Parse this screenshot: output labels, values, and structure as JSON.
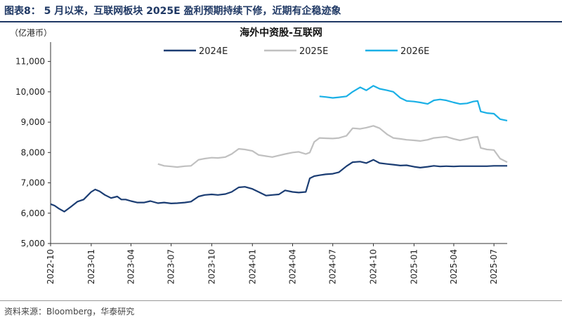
{
  "figure_title": "图表8：  5 月以来，互联网板块 2025E 盈利预期持续下修，近期有企稳迹象",
  "unit_label": "（亿港币）",
  "source_note": "资料来源：Bloomberg，华泰研究",
  "colors": {
    "2024E": "#1b3d73",
    "2025E": "#c0c0c0",
    "2026E": "#1ab0e6",
    "header": "#1f3864"
  },
  "chart_data": {
    "type": "line",
    "title": "海外中资股-互联网",
    "ylabel": "（亿港币）",
    "ylim": [
      5000,
      11500
    ],
    "yticks": [
      5000,
      6000,
      7000,
      8000,
      9000,
      10000,
      11000
    ],
    "ytick_labels": [
      "5,000",
      "6,000",
      "7,000",
      "8,000",
      "9,000",
      "10,000",
      "11,000"
    ],
    "xlim": [
      "2022-10-01",
      "2025-07-31"
    ],
    "xticks": [
      "2022-10",
      "2023-01",
      "2023-04",
      "2023-07",
      "2023-10",
      "2024-01",
      "2024-04",
      "2024-07",
      "2024-10",
      "2025-01",
      "2025-04",
      "2025-07"
    ],
    "legend_position": "top",
    "series": [
      {
        "name": "2024E",
        "key": "2024E",
        "x": [
          "2022-10-01",
          "2022-10-10",
          "2022-10-20",
          "2022-11-01",
          "2022-11-15",
          "2022-12-01",
          "2022-12-15",
          "2023-01-01",
          "2023-01-10",
          "2023-01-20",
          "2023-02-01",
          "2023-02-15",
          "2023-03-01",
          "2023-03-10",
          "2023-03-20",
          "2023-04-01",
          "2023-04-15",
          "2023-05-01",
          "2023-05-15",
          "2023-06-01",
          "2023-06-15",
          "2023-07-01",
          "2023-07-15",
          "2023-08-01",
          "2023-08-15",
          "2023-09-01",
          "2023-09-15",
          "2023-10-01",
          "2023-10-15",
          "2023-11-01",
          "2023-11-15",
          "2023-12-01",
          "2023-12-15",
          "2024-01-01",
          "2024-01-15",
          "2024-02-01",
          "2024-02-15",
          "2024-03-01",
          "2024-03-15",
          "2024-04-01",
          "2024-04-15",
          "2024-05-01",
          "2024-05-10",
          "2024-05-20",
          "2024-06-01",
          "2024-06-15",
          "2024-07-01",
          "2024-07-15",
          "2024-08-01",
          "2024-08-15",
          "2024-09-01",
          "2024-09-15",
          "2024-10-01",
          "2024-10-15",
          "2024-11-01",
          "2024-11-15",
          "2024-12-01",
          "2024-12-15",
          "2025-01-01",
          "2025-01-15",
          "2025-02-01",
          "2025-02-15",
          "2025-03-01",
          "2025-03-15",
          "2025-04-01",
          "2025-04-15",
          "2025-05-01",
          "2025-05-15",
          "2025-06-01",
          "2025-06-15",
          "2025-07-01",
          "2025-07-15",
          "2025-07-31"
        ],
        "values": [
          6300,
          6250,
          6150,
          6050,
          6200,
          6380,
          6450,
          6700,
          6780,
          6720,
          6600,
          6500,
          6550,
          6450,
          6450,
          6400,
          6350,
          6350,
          6400,
          6330,
          6350,
          6320,
          6330,
          6350,
          6380,
          6550,
          6600,
          6620,
          6600,
          6630,
          6700,
          6850,
          6870,
          6800,
          6700,
          6580,
          6600,
          6620,
          6750,
          6700,
          6680,
          6700,
          7150,
          7220,
          7250,
          7280,
          7300,
          7350,
          7550,
          7680,
          7700,
          7650,
          7760,
          7650,
          7620,
          7600,
          7570,
          7580,
          7530,
          7500,
          7530,
          7560,
          7540,
          7550,
          7540,
          7550,
          7550,
          7550,
          7550,
          7550,
          7560,
          7560,
          7560
        ]
      },
      {
        "name": "2025E",
        "key": "2025E",
        "x": [
          "2023-06-01",
          "2023-06-15",
          "2023-07-01",
          "2023-07-15",
          "2023-08-01",
          "2023-08-15",
          "2023-09-01",
          "2023-09-15",
          "2023-10-01",
          "2023-10-15",
          "2023-11-01",
          "2023-11-15",
          "2023-12-01",
          "2023-12-15",
          "2024-01-01",
          "2024-01-15",
          "2024-02-01",
          "2024-02-15",
          "2024-03-01",
          "2024-03-15",
          "2024-04-01",
          "2024-04-15",
          "2024-05-01",
          "2024-05-10",
          "2024-05-20",
          "2024-06-01",
          "2024-06-15",
          "2024-07-01",
          "2024-07-15",
          "2024-08-01",
          "2024-08-15",
          "2024-09-01",
          "2024-09-15",
          "2024-10-01",
          "2024-10-15",
          "2024-11-01",
          "2024-11-15",
          "2024-12-01",
          "2024-12-15",
          "2025-01-01",
          "2025-01-15",
          "2025-02-01",
          "2025-02-15",
          "2025-03-01",
          "2025-03-15",
          "2025-04-01",
          "2025-04-15",
          "2025-05-01",
          "2025-05-15",
          "2025-05-25",
          "2025-06-01",
          "2025-06-15",
          "2025-07-01",
          "2025-07-15",
          "2025-07-31"
        ],
        "values": [
          7620,
          7560,
          7540,
          7520,
          7550,
          7560,
          7760,
          7800,
          7830,
          7820,
          7850,
          7950,
          8120,
          8100,
          8050,
          7920,
          7880,
          7850,
          7900,
          7950,
          8000,
          8020,
          7950,
          8000,
          8350,
          8480,
          8470,
          8460,
          8480,
          8550,
          8800,
          8780,
          8820,
          8880,
          8800,
          8600,
          8480,
          8450,
          8420,
          8400,
          8380,
          8420,
          8480,
          8500,
          8520,
          8450,
          8400,
          8450,
          8500,
          8520,
          8150,
          8100,
          8080,
          7800,
          7680
        ]
      },
      {
        "name": "2026E",
        "key": "2026E",
        "x": [
          "2024-06-01",
          "2024-06-15",
          "2024-07-01",
          "2024-07-15",
          "2024-08-01",
          "2024-08-15",
          "2024-09-01",
          "2024-09-15",
          "2024-10-01",
          "2024-10-15",
          "2024-11-01",
          "2024-11-15",
          "2024-12-01",
          "2024-12-15",
          "2025-01-01",
          "2025-01-15",
          "2025-02-01",
          "2025-02-15",
          "2025-03-01",
          "2025-03-15",
          "2025-04-01",
          "2025-04-15",
          "2025-05-01",
          "2025-05-15",
          "2025-05-25",
          "2025-06-01",
          "2025-06-15",
          "2025-07-01",
          "2025-07-15",
          "2025-07-31"
        ],
        "values": [
          9850,
          9830,
          9800,
          9820,
          9850,
          10000,
          10150,
          10050,
          10200,
          10100,
          10050,
          10000,
          9800,
          9700,
          9680,
          9650,
          9600,
          9720,
          9750,
          9720,
          9650,
          9600,
          9620,
          9680,
          9700,
          9350,
          9300,
          9280,
          9100,
          9050
        ]
      }
    ]
  }
}
